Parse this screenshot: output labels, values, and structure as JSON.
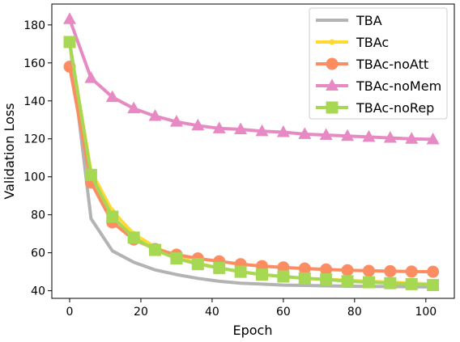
{
  "chart_data": {
    "type": "line",
    "title": "",
    "xlabel": "Epoch",
    "ylabel": "Validation Loss",
    "xlim": [
      -5,
      108
    ],
    "ylim": [
      36,
      191
    ],
    "xticks": [
      0,
      20,
      40,
      60,
      80,
      100
    ],
    "yticks": [
      40,
      60,
      80,
      100,
      120,
      140,
      160,
      180
    ],
    "grid": false,
    "legend_position": "top-right",
    "x": [
      0,
      6,
      12,
      18,
      24,
      30,
      36,
      42,
      48,
      54,
      60,
      66,
      72,
      78,
      84,
      90,
      96,
      102
    ],
    "series": [
      {
        "name": "TBA",
        "color": "#b3b3b3",
        "marker": "none",
        "values": [
          171,
          78,
          61,
          55,
          51,
          48.5,
          46.5,
          45,
          44,
          43.5,
          43,
          42.8,
          42.6,
          42.4,
          42.3,
          42.2,
          42.1,
          42
        ]
      },
      {
        "name": "TBAc",
        "color": "#ffd92f",
        "marker": "circle-small",
        "values": [
          170,
          103,
          82,
          70,
          63,
          58,
          54.5,
          52,
          50,
          48.5,
          47.5,
          46.5,
          46,
          45.5,
          45,
          44.5,
          44,
          43.5
        ]
      },
      {
        "name": "TBAc-noAtt",
        "color": "#fc8d62",
        "marker": "circle",
        "values": [
          158,
          97,
          76,
          67,
          62,
          59,
          57,
          55.5,
          54,
          53,
          52.3,
          51.7,
          51.2,
          50.8,
          50.5,
          50.3,
          50.1,
          50
        ]
      },
      {
        "name": "TBAc-noMem",
        "color": "#e78ac3",
        "marker": "triangle",
        "values": [
          183,
          152,
          142,
          136,
          132,
          129,
          127,
          125.5,
          125,
          124,
          123.5,
          122.5,
          122,
          121.5,
          121,
          120.5,
          120,
          119.7
        ]
      },
      {
        "name": "TBAc-noRep",
        "color": "#a6d854",
        "marker": "square",
        "values": [
          171,
          101,
          79,
          68,
          61.5,
          57,
          54,
          52,
          50,
          48.5,
          47.5,
          46.5,
          46,
          45,
          44.5,
          44,
          43.5,
          43
        ]
      }
    ]
  }
}
